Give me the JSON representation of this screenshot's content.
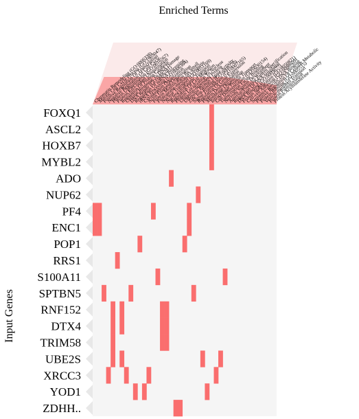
{
  "chart_data": {
    "type": "heatmap",
    "title": "Enriched Terms",
    "ylabel": "Input Genes",
    "xlabel": "",
    "colors": {
      "hit": "#fa6e6e",
      "background": "#f5f5f5",
      "term_band": "#fa6e6e"
    },
    "terms": [
      "Chromatin Remodeling (GO:0006338)",
      "Mitotic Cell Cycle Process (GO:1903047)",
      "Positive Regulation Of Transcription",
      "Negative Regulation Of Cell Cycle",
      "Protein Ubiquitination (GO:0016567)",
      "Protein K63-linked Ubiquitination",
      "Regulation Of Protein Catabolic",
      "Cellular Response To DNA Damage",
      "DNA Repair (GO:0006281)",
      "Regulation Of mRNA Processing",
      "rRNA Processing (GO:0006364)",
      "Cytoskeleton Organization",
      "Actin Filament Organization",
      "Protein Modification By Small",
      "Proteasome-mediated Ubiquitin",
      "Nuclear Transport (GO:0051169)",
      "Nucleocytoplasmic Transport",
      "Regulation Of Cell Migration",
      "Protein Localization To Nucleus",
      "Ubiquitin-dependent Protein",
      "Ubiquitin Protein Ligase Activity",
      "Zinc Ion Binding (GO:0008270)",
      "Signal Transduction (GO:0007165)",
      "Regulation Of Gene Expression",
      "Protein Deubiquitination",
      "Membrane Organization",
      "Intracellular Protein Transport",
      "Cell Differentiation (GO:0030154)",
      "Transcription Factor Binding",
      "Nervous System Development",
      "Anterior/Posterior Pattern Specification",
      "Regulation Of DNA-templated",
      "DNA Binding (GO:0003677)",
      "Protein Stabilization (GO:0050821)",
      "Cell-cell Adhesion (GO:0098609)",
      "Sequence-specific DNA Binding",
      "Positive Regulation Of Cellular Metabolic",
      "Protein Binding (GO:0005515)",
      "Vesicle-mediated Transport",
      "Protein Palmitoylation",
      "Protein Acyltransferase Activity"
    ],
    "genes": [
      "FOXQ1",
      "ASCL2",
      "HOXB7",
      "MYBL2",
      "ADO",
      "NUP62",
      "PF4",
      "ENC1",
      "POP1",
      "RRS1",
      "S100A11",
      "SPTBN5",
      "RNF152",
      "DTX4",
      "TRIM58",
      "UBE2S",
      "XRCC3",
      "YOD1",
      "ZDHH.."
    ],
    "hits": [
      {
        "gene": "FOXQ1",
        "terms": [
          26
        ]
      },
      {
        "gene": "ASCL2",
        "terms": [
          26
        ]
      },
      {
        "gene": "HOXB7",
        "terms": [
          26
        ]
      },
      {
        "gene": "MYBL2",
        "terms": [
          26
        ]
      },
      {
        "gene": "ADO",
        "terms": [
          17
        ]
      },
      {
        "gene": "NUP62",
        "terms": [
          23
        ]
      },
      {
        "gene": "PF4",
        "terms": [
          0,
          1,
          13,
          21
        ]
      },
      {
        "gene": "ENC1",
        "terms": [
          0,
          1,
          21
        ]
      },
      {
        "gene": "POP1",
        "terms": [
          10,
          20
        ]
      },
      {
        "gene": "RRS1",
        "terms": [
          5
        ]
      },
      {
        "gene": "S100A11",
        "terms": [
          14,
          29
        ]
      },
      {
        "gene": "SPTBN5",
        "terms": [
          2,
          8,
          22
        ]
      },
      {
        "gene": "RNF152",
        "terms": [
          4,
          6,
          15,
          16
        ]
      },
      {
        "gene": "DTX4",
        "terms": [
          4,
          6,
          15,
          16
        ]
      },
      {
        "gene": "TRIM58",
        "terms": [
          4,
          15,
          16
        ]
      },
      {
        "gene": "UBE2S",
        "terms": [
          4,
          6,
          24,
          28
        ]
      },
      {
        "gene": "XRCC3",
        "terms": [
          3,
          7,
          12,
          27
        ]
      },
      {
        "gene": "YOD1",
        "terms": [
          9,
          11,
          25
        ]
      },
      {
        "gene": "ZDHH..",
        "terms": [
          18,
          19
        ]
      }
    ]
  }
}
